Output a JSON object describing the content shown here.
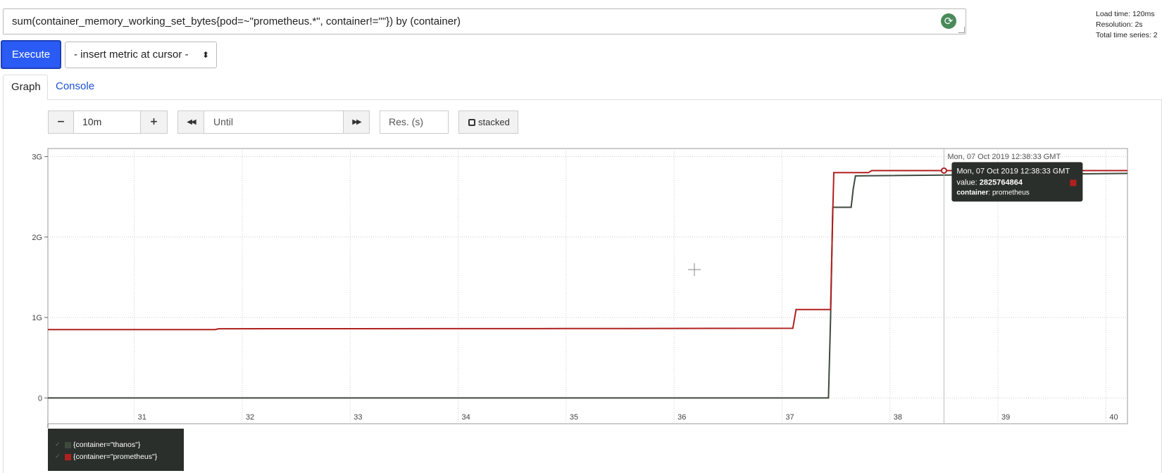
{
  "query": {
    "expression": "sum(container_memory_working_set_bytes{pod=~\"prometheus.*\", container!=\"\"}) by (container)",
    "refresh_icon": "refresh-icon"
  },
  "stats": {
    "load_time": "Load time: 120ms",
    "resolution": "Resolution: 2s",
    "total_series": "Total time series: 2"
  },
  "toolbar": {
    "execute_label": "Execute",
    "insert_metric_label": "- insert metric at cursor -",
    "insert_metric_caret": "⬍"
  },
  "tabs": [
    {
      "label": "Graph",
      "active": true
    },
    {
      "label": "Console",
      "active": false
    }
  ],
  "graph_controls": {
    "decrease": "−",
    "range": "10m",
    "increase": "+",
    "back": "◀◀",
    "until_placeholder": "Until",
    "forward": "▶▶",
    "res_placeholder": "Res. (s)",
    "stacked_label": "stacked"
  },
  "colors": {
    "thanos": "#3d4a3d",
    "prometheus": "#b02020",
    "execute": "#2b5bf5",
    "tooltip_bg": "#2b2f2b"
  },
  "chart_data": {
    "type": "line",
    "title": "",
    "xlabel": "",
    "ylabel": "",
    "x_tick_labels": [
      "31",
      "32",
      "33",
      "34",
      "35",
      "36",
      "37",
      "38",
      "39",
      "40"
    ],
    "x_ticks": [
      31,
      32,
      33,
      34,
      35,
      36,
      37,
      38,
      39,
      40
    ],
    "xlim": [
      30.2,
      40.2
    ],
    "y_tick_labels": [
      "0",
      "1G",
      "2G",
      "3G"
    ],
    "y_ticks": [
      0,
      1000000000,
      2000000000,
      3000000000
    ],
    "ylim": [
      -320000000,
      3100000000
    ],
    "grid": true,
    "legend_position": "bottom-left",
    "series": [
      {
        "name": "{container=\"thanos\"}",
        "color_key": "thanos",
        "x": [
          30.2,
          37.43,
          37.45,
          37.47,
          37.64,
          37.66,
          37.68,
          40.2
        ],
        "values": [
          0,
          0,
          1000000000,
          2370000000,
          2370000000,
          2600000000,
          2760000000,
          2790000000
        ]
      },
      {
        "name": "{container=\"prometheus\"}",
        "color_key": "prometheus",
        "x": [
          30.2,
          31.75,
          31.78,
          34.0,
          35.0,
          36.0,
          37.1,
          37.13,
          37.45,
          37.47,
          37.48,
          37.8,
          37.83,
          38.5,
          40.2
        ],
        "values": [
          850000000,
          850000000,
          860000000,
          862000000,
          863000000,
          864000000,
          866000000,
          1100000000,
          1100000000,
          2300000000,
          2800000000,
          2800000000,
          2825000000,
          2825764864,
          2825764864
        ]
      }
    ],
    "hover": {
      "x": 38.5,
      "time_label": "Mon, 07 Oct 2019 12:38:33 GMT",
      "tooltip_title": "Mon, 07 Oct 2019 12:38:33 GMT",
      "value_label": "value:",
      "value": "2825764864",
      "label_key": "container",
      "label_value": ": prometheus"
    }
  }
}
